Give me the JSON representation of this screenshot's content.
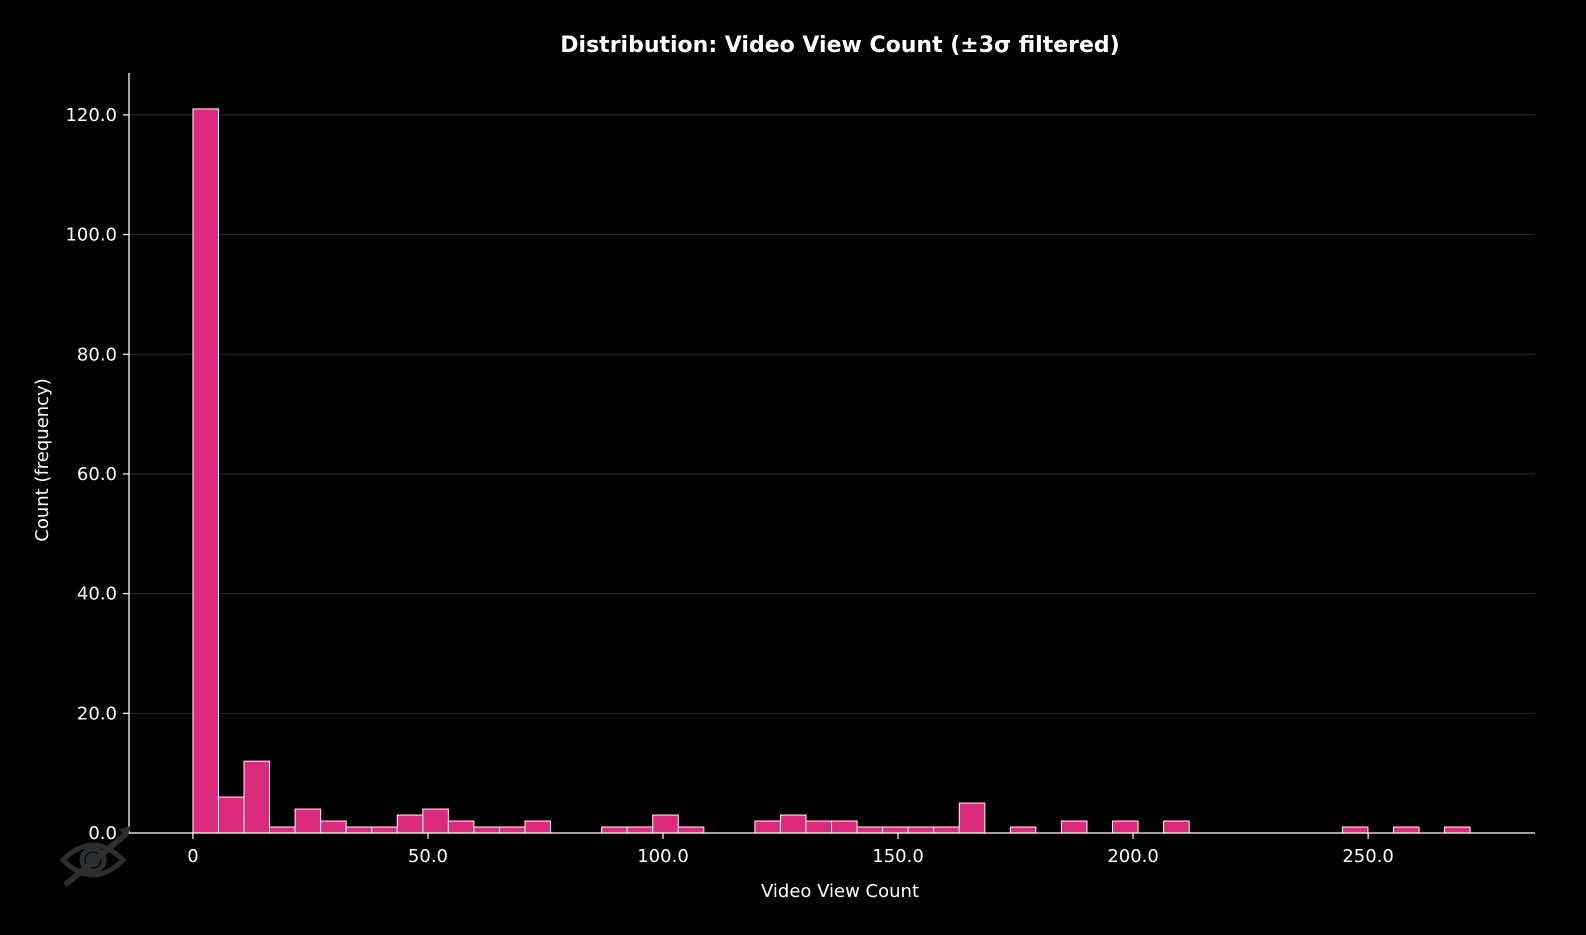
{
  "chart_data": {
    "type": "bar",
    "subtype": "histogram",
    "title": "Distribution: Video View Count (±3σ filtered)",
    "xlabel": "Video View Count",
    "ylabel": "Count (frequency)",
    "bin_start": 0,
    "bin_width": 5.434,
    "values": [
      121,
      6,
      12,
      1,
      4,
      2,
      1,
      1,
      3,
      4,
      2,
      1,
      1,
      2,
      0,
      0,
      1,
      1,
      3,
      1,
      0,
      0,
      2,
      3,
      2,
      2,
      1,
      1,
      1,
      1,
      5,
      0,
      1,
      0,
      2,
      0,
      2,
      0,
      2,
      0,
      0,
      0,
      0,
      0,
      0,
      1,
      0,
      1,
      0,
      1
    ],
    "xlim": [
      -13.6,
      285.5
    ],
    "ylim": [
      0,
      127
    ],
    "xticks": [
      0,
      50,
      100,
      150,
      200,
      250
    ],
    "xtick_labels": [
      "0",
      "50.0",
      "100.0",
      "150.0",
      "200.0",
      "250.0"
    ],
    "yticks": [
      0,
      20,
      40,
      60,
      80,
      100,
      120
    ],
    "ytick_labels": [
      "0.0",
      "20.0",
      "40.0",
      "60.0",
      "80.0",
      "100.0",
      "120.0"
    ],
    "grid": "horizontal",
    "colors": {
      "bar": "#dc2a7c",
      "bar_edge": "#ffffff",
      "background": "#000000",
      "grid": "#2a2a2a",
      "watermark": "#2b2f2f"
    },
    "watermark_icon": "eye-slash-icon"
  }
}
